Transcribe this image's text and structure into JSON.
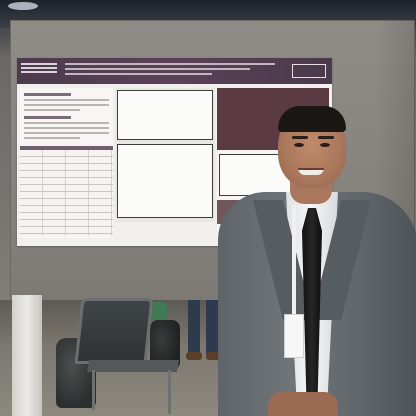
{
  "photo": {
    "description_labels": [],
    "colors": {
      "board": "#8f8b86",
      "poster_header": "#5a4057",
      "jacket": "#6f7478",
      "tie": "#111111"
    }
  }
}
